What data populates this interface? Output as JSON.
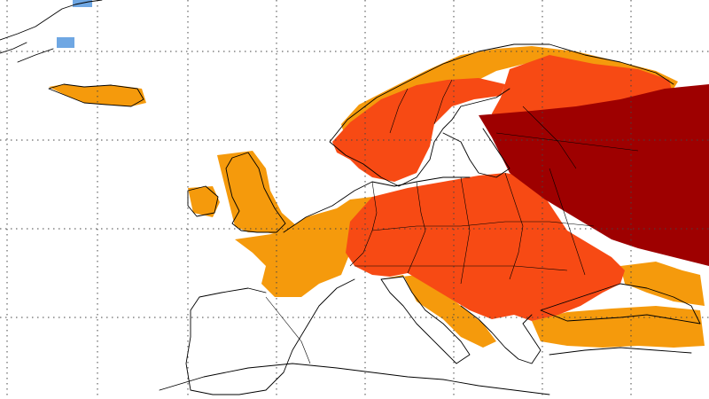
{
  "map": {
    "type": "gridded-anomaly-map",
    "region": "Europe",
    "grid_lines": "dotted",
    "colors": {
      "background": "#ffffff",
      "coastline": "#000000",
      "category_1": "#F59A0C",
      "category_2": "#F74A14",
      "category_3": "#9E0000",
      "negative_category": "#6FA7E3"
    },
    "categories": [
      {
        "id": "category_1"
      },
      {
        "id": "category_2"
      },
      {
        "id": "category_3"
      },
      {
        "id": "negative_category"
      }
    ]
  }
}
